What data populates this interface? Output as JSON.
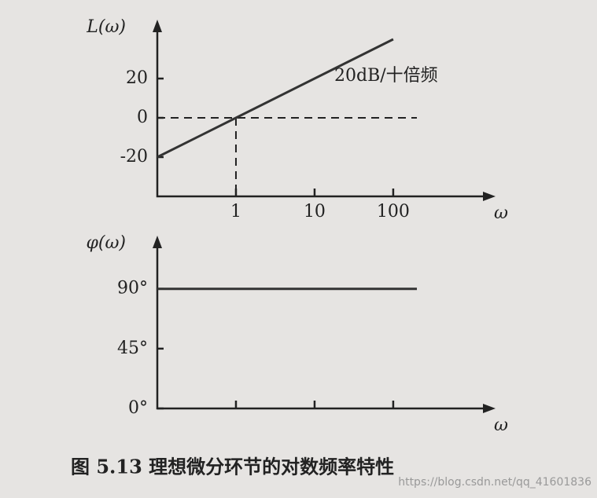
{
  "chart_data": [
    {
      "type": "line",
      "xlabel": "ω",
      "ylabel": "L(ω)",
      "xlog": true,
      "xlim": [
        0.1,
        2000
      ],
      "ylim": [
        -40,
        50
      ],
      "xticks": [
        1,
        10,
        100
      ],
      "yticks": [
        -20,
        0,
        20
      ],
      "x": [
        0.1,
        1,
        100
      ],
      "series": [
        {
          "color": "#333333",
          "values": [
            -20,
            0,
            40
          ]
        }
      ],
      "annotation": "20dB/十倍频",
      "reference_lines": {
        "x": 1,
        "y": 0
      }
    },
    {
      "type": "line",
      "xlabel": "ω",
      "ylabel": "φ(ω)",
      "xlog": true,
      "xlim": [
        0.1,
        2000
      ],
      "ylim": [
        0,
        130
      ],
      "xticks": [
        1,
        10,
        100
      ],
      "show_xtick_labels": false,
      "yticks": [
        {
          "value": 0,
          "label": "0°"
        },
        {
          "value": 45,
          "label": "45°"
        },
        {
          "value": 90,
          "label": "90°"
        }
      ],
      "x": [
        0.1,
        200
      ],
      "series": [
        {
          "color": "#333333",
          "values": [
            90,
            90
          ]
        }
      ]
    }
  ],
  "caption": "图 5.13   理想微分环节的对数频率特性",
  "watermark": "https://blog.csdn.net/qq_41601836"
}
